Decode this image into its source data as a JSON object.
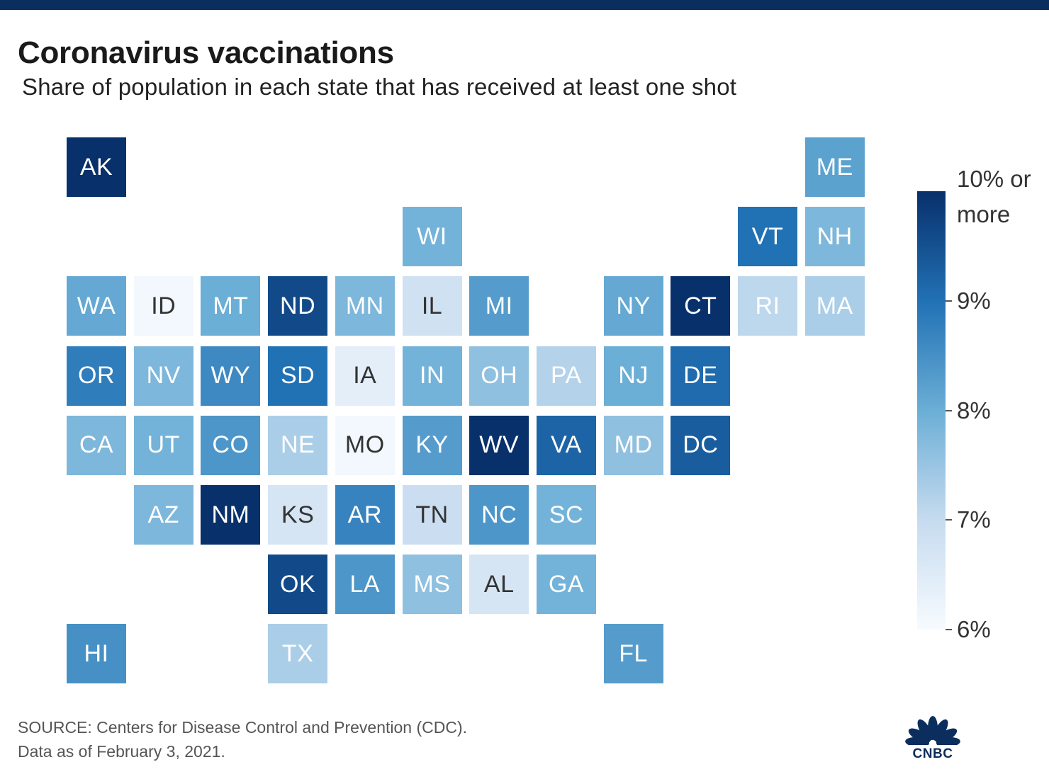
{
  "title": "Coronavirus vaccinations",
  "subtitle": "Share of population in each state that has received at least one shot",
  "legend": {
    "top_label_line1": "10% or",
    "top_label_line2": "more",
    "ticks": [
      {
        "label": "9%",
        "value": 9
      },
      {
        "label": "8%",
        "value": 8
      },
      {
        "label": "7%",
        "value": 7
      },
      {
        "label": "6%",
        "value": 6
      }
    ],
    "min": 6,
    "max": 10,
    "colors": [
      "#f7fbff",
      "#c6dbef",
      "#6baed6",
      "#2171b5",
      "#08306b"
    ]
  },
  "states": [
    {
      "abbr": "AK",
      "col": 0,
      "row": 0,
      "value": 10.0
    },
    {
      "abbr": "ME",
      "col": 11,
      "row": 0,
      "value": 8.2
    },
    {
      "abbr": "WI",
      "col": 5,
      "row": 1,
      "value": 7.9
    },
    {
      "abbr": "VT",
      "col": 10,
      "row": 1,
      "value": 9.0
    },
    {
      "abbr": "NH",
      "col": 11,
      "row": 1,
      "value": 7.8
    },
    {
      "abbr": "WA",
      "col": 0,
      "row": 2,
      "value": 8.1
    },
    {
      "abbr": "ID",
      "col": 1,
      "row": 2,
      "value": 6.1
    },
    {
      "abbr": "MT",
      "col": 2,
      "row": 2,
      "value": 8.0
    },
    {
      "abbr": "ND",
      "col": 3,
      "row": 2,
      "value": 9.6
    },
    {
      "abbr": "MN",
      "col": 4,
      "row": 2,
      "value": 7.8
    },
    {
      "abbr": "IL",
      "col": 5,
      "row": 2,
      "value": 6.8
    },
    {
      "abbr": "MI",
      "col": 6,
      "row": 2,
      "value": 8.3
    },
    {
      "abbr": "NY",
      "col": 8,
      "row": 2,
      "value": 8.1
    },
    {
      "abbr": "CT",
      "col": 9,
      "row": 2,
      "value": 10.0
    },
    {
      "abbr": "RI",
      "col": 10,
      "row": 2,
      "value": 7.1
    },
    {
      "abbr": "MA",
      "col": 11,
      "row": 2,
      "value": 7.3
    },
    {
      "abbr": "OR",
      "col": 0,
      "row": 3,
      "value": 8.8
    },
    {
      "abbr": "NV",
      "col": 1,
      "row": 3,
      "value": 7.8
    },
    {
      "abbr": "WY",
      "col": 2,
      "row": 3,
      "value": 8.6
    },
    {
      "abbr": "SD",
      "col": 3,
      "row": 3,
      "value": 9.0
    },
    {
      "abbr": "IA",
      "col": 4,
      "row": 3,
      "value": 6.4
    },
    {
      "abbr": "IN",
      "col": 5,
      "row": 3,
      "value": 7.9
    },
    {
      "abbr": "OH",
      "col": 6,
      "row": 3,
      "value": 7.6
    },
    {
      "abbr": "PA",
      "col": 7,
      "row": 3,
      "value": 7.2
    },
    {
      "abbr": "NJ",
      "col": 8,
      "row": 3,
      "value": 8.0
    },
    {
      "abbr": "DE",
      "col": 9,
      "row": 3,
      "value": 9.1
    },
    {
      "abbr": "CA",
      "col": 0,
      "row": 4,
      "value": 7.8
    },
    {
      "abbr": "UT",
      "col": 1,
      "row": 4,
      "value": 7.9
    },
    {
      "abbr": "CO",
      "col": 2,
      "row": 4,
      "value": 8.4
    },
    {
      "abbr": "NE",
      "col": 3,
      "row": 4,
      "value": 7.3
    },
    {
      "abbr": "MO",
      "col": 4,
      "row": 4,
      "value": 6.1
    },
    {
      "abbr": "KY",
      "col": 5,
      "row": 4,
      "value": 8.3
    },
    {
      "abbr": "WV",
      "col": 6,
      "row": 4,
      "value": 10.0
    },
    {
      "abbr": "VA",
      "col": 7,
      "row": 4,
      "value": 9.2
    },
    {
      "abbr": "MD",
      "col": 8,
      "row": 4,
      "value": 7.6
    },
    {
      "abbr": "DC",
      "col": 9,
      "row": 4,
      "value": 9.3
    },
    {
      "abbr": "AZ",
      "col": 1,
      "row": 5,
      "value": 7.8
    },
    {
      "abbr": "NM",
      "col": 2,
      "row": 5,
      "value": 10.0
    },
    {
      "abbr": "KS",
      "col": 3,
      "row": 5,
      "value": 6.7
    },
    {
      "abbr": "AR",
      "col": 4,
      "row": 5,
      "value": 8.7
    },
    {
      "abbr": "TN",
      "col": 5,
      "row": 5,
      "value": 6.9
    },
    {
      "abbr": "NC",
      "col": 6,
      "row": 5,
      "value": 8.4
    },
    {
      "abbr": "SC",
      "col": 7,
      "row": 5,
      "value": 7.9
    },
    {
      "abbr": "OK",
      "col": 3,
      "row": 6,
      "value": 9.6
    },
    {
      "abbr": "LA",
      "col": 4,
      "row": 6,
      "value": 8.4
    },
    {
      "abbr": "MS",
      "col": 5,
      "row": 6,
      "value": 7.6
    },
    {
      "abbr": "AL",
      "col": 6,
      "row": 6,
      "value": 6.7
    },
    {
      "abbr": "GA",
      "col": 7,
      "row": 6,
      "value": 7.9
    },
    {
      "abbr": "HI",
      "col": 0,
      "row": 7,
      "value": 8.5
    },
    {
      "abbr": "TX",
      "col": 3,
      "row": 7,
      "value": 7.3
    },
    {
      "abbr": "FL",
      "col": 8,
      "row": 7,
      "value": 8.3
    }
  ],
  "source_line1": "SOURCE: Centers for Disease Control and Prevention (CDC).",
  "source_line2": "Data as of February 3, 2021.",
  "logo_text": "CNBC",
  "logo_icon": "peacock-icon"
}
